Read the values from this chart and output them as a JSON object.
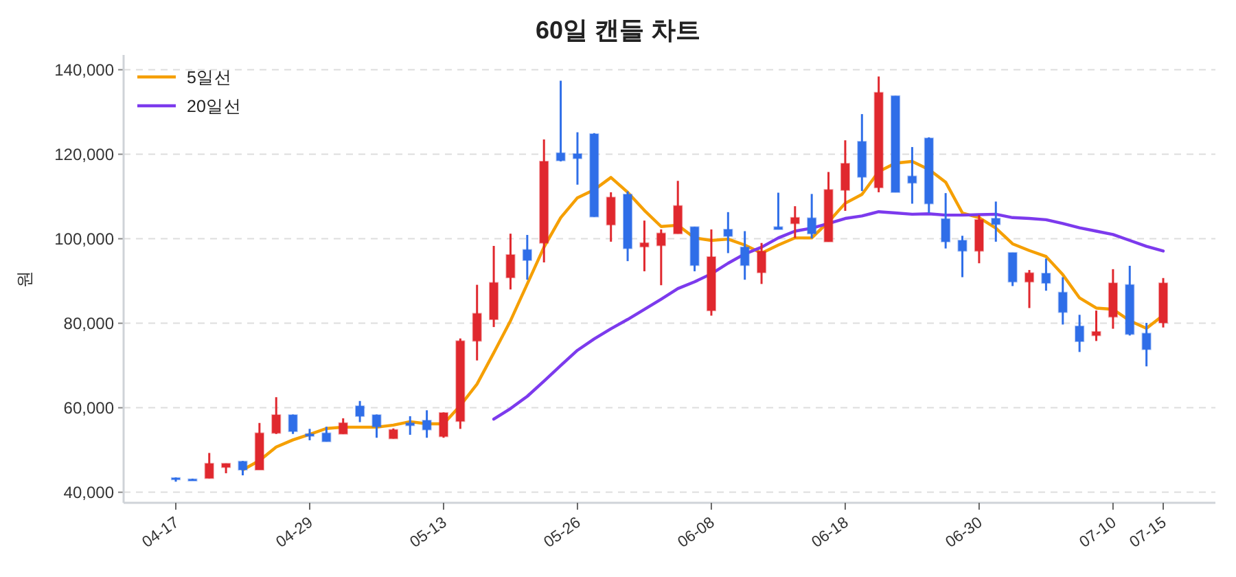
{
  "chart_data": {
    "type": "candlestick",
    "title": "60일 캔들 차트",
    "ylabel": "원",
    "categories": [
      "04-17",
      null,
      null,
      null,
      null,
      null,
      null,
      null,
      "04-29",
      null,
      null,
      null,
      null,
      null,
      null,
      null,
      "05-13",
      null,
      null,
      null,
      null,
      null,
      null,
      null,
      "05-26",
      null,
      null,
      null,
      null,
      null,
      null,
      null,
      "06-08",
      null,
      null,
      null,
      null,
      null,
      null,
      null,
      "06-18",
      null,
      null,
      null,
      null,
      null,
      null,
      null,
      "06-30",
      null,
      null,
      null,
      null,
      null,
      null,
      null,
      "07-10",
      null,
      null,
      "07-15"
    ],
    "ohlc": [
      [
        43400,
        43500,
        42500,
        43000
      ],
      [
        43100,
        43200,
        42800,
        42900
      ],
      [
        43300,
        49300,
        43300,
        46800
      ],
      [
        45900,
        46800,
        44500,
        46800
      ],
      [
        47300,
        47400,
        44000,
        45300
      ],
      [
        45300,
        56400,
        45300,
        54000
      ],
      [
        54000,
        62500,
        53800,
        58300
      ],
      [
        58300,
        58400,
        53800,
        54400
      ],
      [
        53800,
        55000,
        52300,
        53300
      ],
      [
        54000,
        55500,
        52000,
        52000
      ],
      [
        53800,
        57500,
        53800,
        56400
      ],
      [
        60400,
        61600,
        56600,
        58000
      ],
      [
        58300,
        58400,
        52900,
        55500
      ],
      [
        52700,
        55100,
        52700,
        54800
      ],
      [
        56400,
        58000,
        53600,
        55800
      ],
      [
        57000,
        59400,
        52900,
        54800
      ],
      [
        53200,
        58900,
        52900,
        58800
      ],
      [
        56800,
        76400,
        55000,
        75800
      ],
      [
        75800,
        89100,
        71200,
        82300
      ],
      [
        80900,
        98300,
        79100,
        89600
      ],
      [
        90800,
        101200,
        88000,
        96200
      ],
      [
        97400,
        100900,
        90300,
        94900
      ],
      [
        99000,
        123500,
        94400,
        118300
      ],
      [
        120300,
        137400,
        118300,
        118500
      ],
      [
        120100,
        125200,
        112800,
        119000
      ],
      [
        124800,
        125000,
        105200,
        105200
      ],
      [
        103300,
        111000,
        99300,
        109800
      ],
      [
        110500,
        111200,
        94700,
        97700
      ],
      [
        98100,
        104300,
        92300,
        99000
      ],
      [
        98400,
        102200,
        89000,
        101300
      ],
      [
        101200,
        113700,
        101200,
        107800
      ],
      [
        102800,
        102800,
        92300,
        93700
      ],
      [
        83000,
        102200,
        81800,
        95700
      ],
      [
        102200,
        106300,
        96600,
        100600
      ],
      [
        98000,
        101800,
        90300,
        93700
      ],
      [
        92000,
        99000,
        89300,
        97000
      ],
      [
        102800,
        110900,
        102200,
        102200
      ],
      [
        103600,
        107700,
        100200,
        105000
      ],
      [
        104900,
        110600,
        100100,
        101200
      ],
      [
        99300,
        115800,
        99300,
        111600
      ],
      [
        111500,
        123300,
        106600,
        117800
      ],
      [
        123000,
        129500,
        111300,
        114600
      ],
      [
        112100,
        138400,
        111000,
        134600
      ],
      [
        133800,
        133800,
        111000,
        111000
      ],
      [
        114800,
        121700,
        108300,
        113200
      ],
      [
        123800,
        124000,
        106100,
        108300
      ],
      [
        104700,
        110800,
        97700,
        99300
      ],
      [
        99600,
        100700,
        90900,
        97100
      ],
      [
        97100,
        105600,
        94200,
        104500
      ],
      [
        104800,
        108800,
        99300,
        103400
      ],
      [
        96700,
        96700,
        88800,
        89800
      ],
      [
        89800,
        92600,
        83600,
        91900
      ],
      [
        91800,
        95300,
        87700,
        89500
      ],
      [
        87300,
        90900,
        79700,
        82600
      ],
      [
        79300,
        82000,
        73200,
        75700
      ],
      [
        77100,
        83000,
        75800,
        78000
      ],
      [
        81500,
        92800,
        78700,
        89500
      ],
      [
        89100,
        93600,
        77100,
        77400
      ],
      [
        77600,
        80100,
        69800,
        73800
      ],
      [
        80100,
        90700,
        79000,
        89500
      ]
    ],
    "colors": [
      "#2f6ee8",
      "#2f6ee8",
      "#e0282e",
      "#e0282e",
      "#2f6ee8",
      "#e0282e",
      "#e0282e",
      "#2f6ee8",
      "#2f6ee8",
      "#2f6ee8",
      "#e0282e",
      "#2f6ee8",
      "#2f6ee8",
      "#e0282e",
      "#2f6ee8",
      "#2f6ee8",
      "#e0282e",
      "#e0282e",
      "#e0282e",
      "#e0282e",
      "#e0282e",
      "#2f6ee8",
      "#e0282e",
      "#2f6ee8",
      "#2f6ee8",
      "#2f6ee8",
      "#e0282e",
      "#2f6ee8",
      "#e0282e",
      "#e0282e",
      "#e0282e",
      "#2f6ee8",
      "#e0282e",
      "#2f6ee8",
      "#2f6ee8",
      "#e0282e",
      "#2f6ee8",
      "#e0282e",
      "#2f6ee8",
      "#e0282e",
      "#e0282e",
      "#2f6ee8",
      "#e0282e",
      "#2f6ee8",
      "#2f6ee8",
      "#2f6ee8",
      "#2f6ee8",
      "#2f6ee8",
      "#e0282e",
      "#2f6ee8",
      "#2f6ee8",
      "#e0282e",
      "#2f6ee8",
      "#2f6ee8",
      "#2f6ee8",
      "#e0282e",
      "#e0282e",
      "#2f6ee8",
      "#2f6ee8",
      "#e0282e"
    ],
    "series": [
      {
        "name": "5일선",
        "type": "line",
        "color": "#f59f00",
        "values": [
          null,
          null,
          null,
          null,
          45300,
          47500,
          50700,
          52400,
          53700,
          55100,
          55400,
          55400,
          55400,
          55900,
          56700,
          56200,
          56200,
          60500,
          65600,
          73000,
          80600,
          89300,
          98000,
          105000,
          109700,
          111600,
          114500,
          111000,
          106700,
          102900,
          103200,
          100200,
          99600,
          99900,
          98500,
          96600,
          98500,
          100200,
          100200,
          104000,
          108400,
          110500,
          115900,
          117900,
          118300,
          116400,
          113400,
          106100,
          105000,
          102500,
          98800,
          97200,
          95800,
          91500,
          86000,
          83600,
          83300,
          80600,
          78800,
          81900
        ]
      },
      {
        "name": "20일선",
        "type": "line",
        "color": "#7c3aed",
        "values": [
          null,
          null,
          null,
          null,
          null,
          null,
          null,
          null,
          null,
          null,
          null,
          null,
          null,
          null,
          null,
          null,
          null,
          null,
          null,
          57300,
          59800,
          62700,
          66300,
          70000,
          73600,
          76300,
          78700,
          80900,
          83300,
          85700,
          88200,
          89800,
          91700,
          94200,
          96400,
          98000,
          100200,
          101800,
          102500,
          103600,
          104800,
          105400,
          106400,
          106100,
          105800,
          105900,
          105600,
          105600,
          105700,
          105800,
          105000,
          104800,
          104500,
          103600,
          102600,
          101800,
          101000,
          99600,
          98200,
          97100
        ]
      }
    ],
    "ylim": [
      37500,
      143500
    ],
    "yticks": [
      {
        "value": 40000,
        "label": "40,000"
      },
      {
        "value": 60000,
        "label": "60,000"
      },
      {
        "value": 80000,
        "label": "80,000"
      },
      {
        "value": 100000,
        "label": "100,000"
      },
      {
        "value": 120000,
        "label": "120,000"
      },
      {
        "value": 140000,
        "label": "140,000"
      }
    ],
    "grid": "y",
    "legend": "top left",
    "marker": "none",
    "line_style": "solid"
  }
}
